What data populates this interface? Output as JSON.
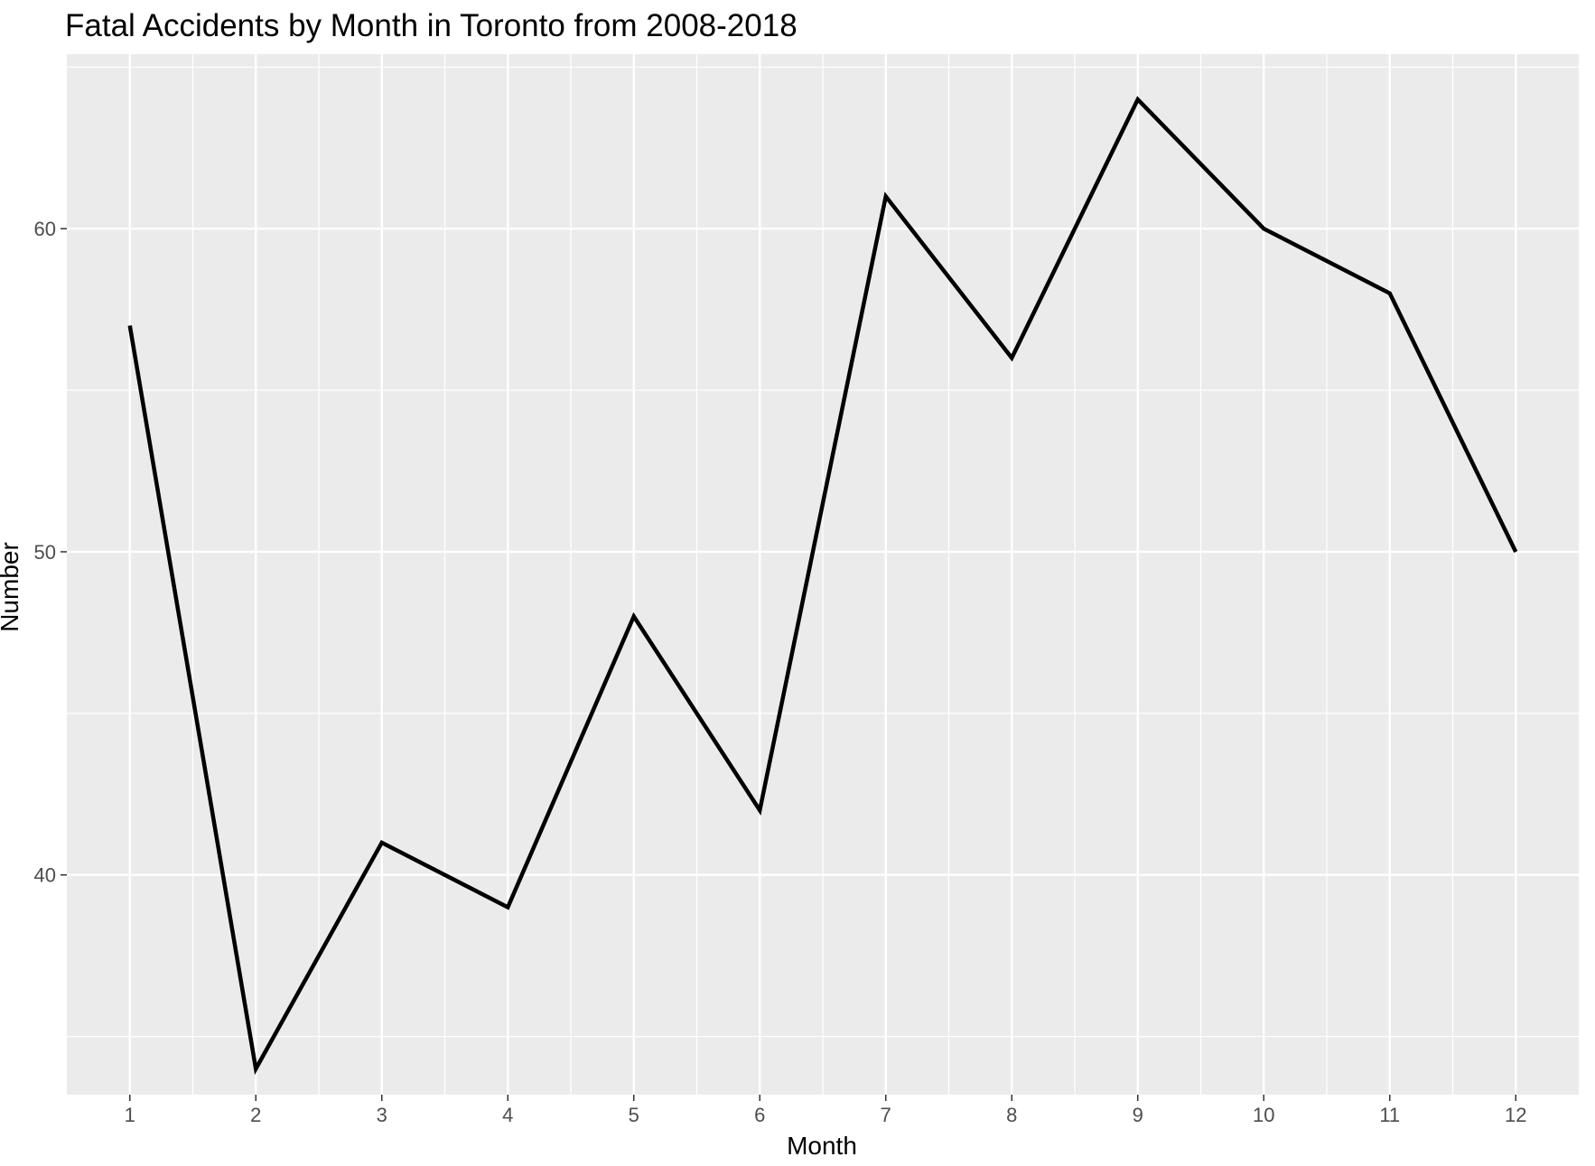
{
  "chart_data": {
    "type": "line",
    "title": "Fatal Accidents by Month in Toronto from 2008-2018",
    "xlabel": "Month",
    "ylabel": "Number",
    "x": [
      1,
      2,
      3,
      4,
      5,
      6,
      7,
      8,
      9,
      10,
      11,
      12
    ],
    "xticks": [
      "1",
      "2",
      "3",
      "4",
      "5",
      "6",
      "7",
      "8",
      "9",
      "10",
      "11",
      "12"
    ],
    "series": [
      {
        "values": [
          57,
          34,
          41,
          39,
          48,
          42,
          61,
          56,
          64,
          60,
          58,
          50
        ]
      }
    ],
    "yticks": [
      40,
      50,
      60
    ],
    "xlim": [
      0.5,
      12.5
    ],
    "ylim": [
      33.2,
      65.4
    ],
    "grid": true,
    "legend": "none",
    "colors": {
      "panel_background": "#EBEBEB",
      "grid": "#FFFFFF",
      "line": "#000000",
      "tick_label": "#4D4D4D",
      "tick_mark": "#333333"
    }
  }
}
